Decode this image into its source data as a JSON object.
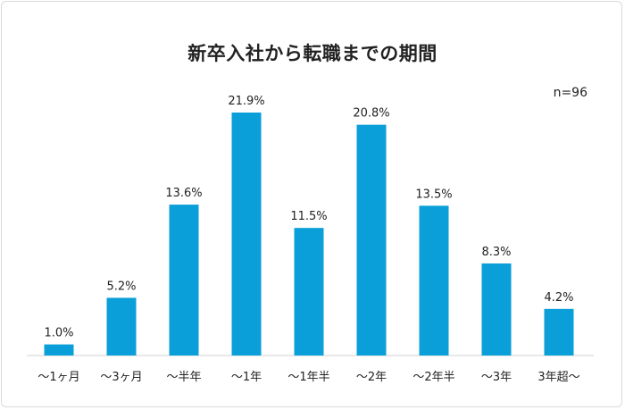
{
  "chart_data": {
    "type": "bar",
    "title": "新卒入社から転職までの期間",
    "note": "n=96",
    "categories": [
      "〜1ヶ月",
      "〜3ヶ月",
      "〜半年",
      "〜1年",
      "〜1年半",
      "〜2年",
      "〜2年半",
      "〜3年",
      "3年超〜"
    ],
    "values": [
      1.0,
      5.2,
      13.6,
      21.9,
      11.5,
      20.8,
      13.5,
      8.3,
      4.2
    ],
    "value_labels": [
      "1.0%",
      "5.2%",
      "13.6%",
      "21.9%",
      "11.5%",
      "20.8%",
      "13.5%",
      "8.3%",
      "4.2%"
    ],
    "xlabel": "",
    "ylabel": "",
    "ylim": [
      0,
      21.9
    ],
    "grid": false,
    "colors": {
      "bar": "#0a9fd8",
      "axis": "#d0d0d0"
    }
  }
}
